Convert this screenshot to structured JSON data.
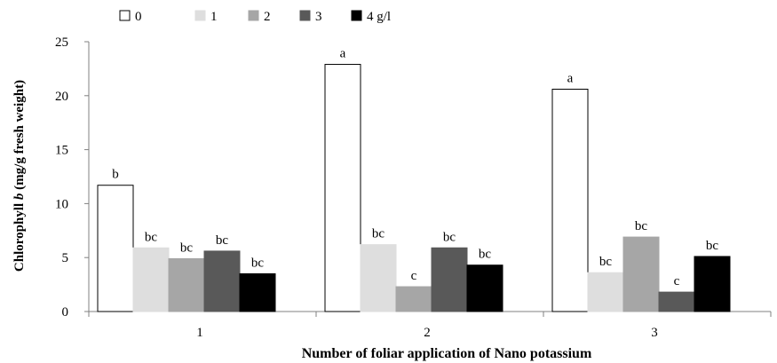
{
  "chart_data": {
    "type": "bar",
    "xlabel": "Number of foliar application of Nano potassium",
    "ylabel_prefix": "Chlorophyll ",
    "ylabel_italic": "b",
    "ylabel_suffix": " (mg/g fresh weight)",
    "ylim": [
      0,
      25
    ],
    "yticks": [
      0,
      5,
      10,
      15,
      20,
      25
    ],
    "grid": false,
    "legend_position": "top-left",
    "categories": [
      "1",
      "2",
      "3"
    ],
    "series": [
      {
        "name": "0",
        "color": "#ffffff",
        "values": [
          11.7,
          22.9,
          20.6
        ],
        "letters": [
          "b",
          "a",
          "a"
        ]
      },
      {
        "name": "1",
        "color": "#dedede",
        "values": [
          5.9,
          6.2,
          3.6
        ],
        "letters": [
          "bc",
          "bc",
          "bc"
        ]
      },
      {
        "name": "2",
        "color": "#a6a6a6",
        "values": [
          4.9,
          2.3,
          6.9
        ],
        "letters": [
          "bc",
          "c",
          "bc"
        ]
      },
      {
        "name": "3",
        "color": "#595959",
        "values": [
          5.6,
          5.9,
          1.8
        ],
        "letters": [
          "bc",
          "bc",
          "c"
        ]
      },
      {
        "name": "4 g/l",
        "color": "#000000",
        "values": [
          3.5,
          4.3,
          5.1
        ],
        "letters": [
          "bc",
          "bc",
          "bc"
        ]
      }
    ]
  }
}
